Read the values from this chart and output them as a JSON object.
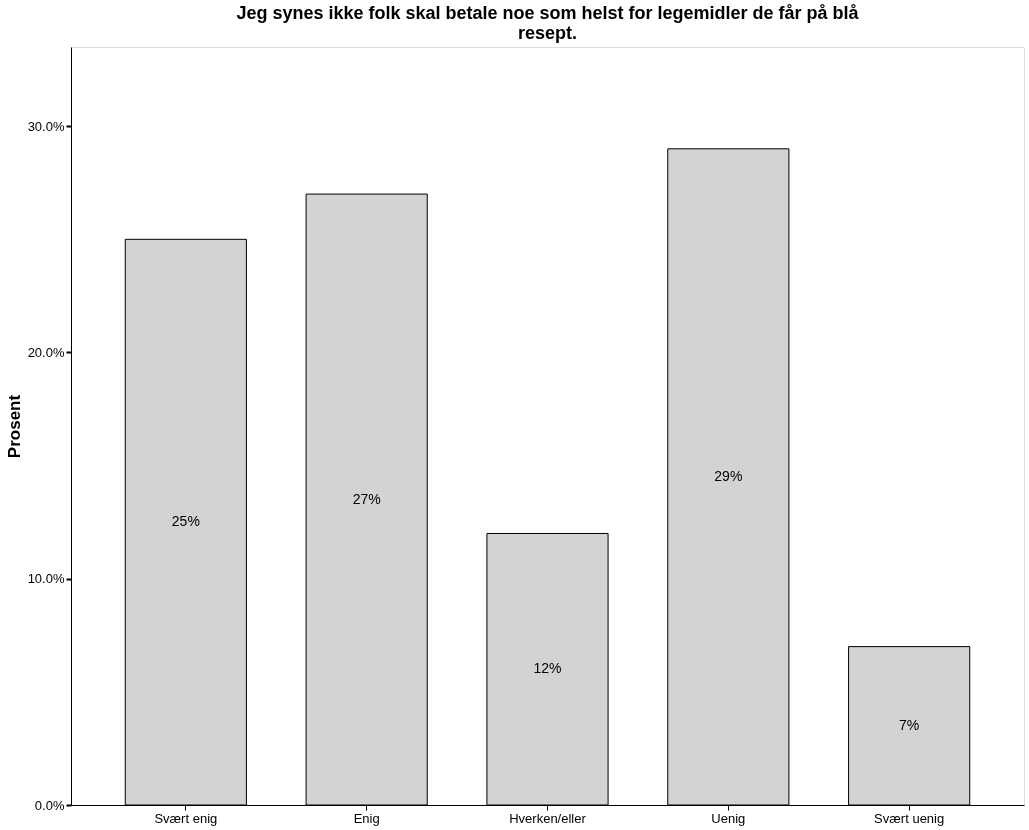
{
  "chart_data": {
    "type": "bar",
    "title": "Jeg synes ikke folk skal betale noe som helst for legemidler de får på blå resept.",
    "ylabel": "Prosent",
    "categories": [
      "Svært enig",
      "Enig",
      "Hverken/eller",
      "Uenig",
      "Svært uenig"
    ],
    "values": [
      25,
      27,
      12,
      29,
      7
    ],
    "value_labels": [
      "25%",
      "27%",
      "12%",
      "29%",
      "7%"
    ],
    "color": "#d3d3d3",
    "ylim": [
      0,
      33.5
    ],
    "yticks": [
      {
        "value": 0,
        "label": "0.0%"
      },
      {
        "value": 10,
        "label": "10.0%"
      },
      {
        "value": 20,
        "label": "20.0%"
      },
      {
        "value": 30,
        "label": "30.0%"
      }
    ],
    "grid": false
  }
}
